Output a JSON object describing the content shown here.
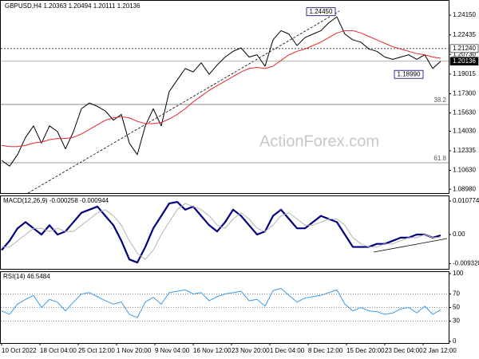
{
  "chart_data": [
    {
      "type": "line",
      "title": "GBPUSD,H4  1.20363 1.20494 1.20111 1.20136",
      "watermark": "ActionForex.com",
      "ylim": [
        1.08649,
        1.25123
      ],
      "yticks": [
        {
          "value": 1.2415,
          "label": "1.24150"
        },
        1.22435,
        {
          "value": 1.2073,
          "label": "1.20730"
        },
        1.19015,
        {
          "value": 1.173,
          "label": "1.17300"
        },
        {
          "value": 1.1563,
          "label": "1.15630"
        },
        {
          "value": 1.1403,
          "label": "1.14030"
        },
        1.12335,
        {
          "value": 1.1063,
          "label": "1.10630"
        },
        {
          "value": 1.0898,
          "label": "1.08980"
        }
      ],
      "series": [
        {
          "color": "#000000",
          "values": [
            1.115,
            1.11,
            1.12,
            1.135,
            1.145,
            1.13,
            1.145,
            1.14,
            1.125,
            1.14,
            1.16,
            1.165,
            1.162,
            1.158,
            1.15,
            1.155,
            1.13,
            1.12,
            1.145,
            1.16,
            1.145,
            1.175,
            1.185,
            1.195,
            1.192,
            1.2,
            1.19,
            1.198,
            1.205,
            1.21,
            1.213,
            1.205,
            1.207,
            1.197,
            1.22,
            1.228,
            1.225,
            1.215,
            1.222,
            1.225,
            1.228,
            1.235,
            1.24,
            1.225,
            1.22,
            1.218,
            1.212,
            1.21,
            1.205,
            1.203,
            1.205,
            1.207,
            1.203,
            1.207,
            1.195,
            1.20136
          ]
        },
        {
          "color": "#e8262a",
          "values": [
            1.128,
            1.127,
            1.127,
            1.128,
            1.13,
            1.131,
            1.133,
            1.134,
            1.134,
            1.135,
            1.138,
            1.142,
            1.146,
            1.15,
            1.152,
            1.153,
            1.152,
            1.149,
            1.147,
            1.147,
            1.148,
            1.151,
            1.155,
            1.16,
            1.166,
            1.171,
            1.176,
            1.18,
            1.184,
            1.188,
            1.192,
            1.195,
            1.196,
            1.195,
            1.197,
            1.202,
            1.207,
            1.21,
            1.212,
            1.215,
            1.218,
            1.222,
            1.226,
            1.228,
            1.228,
            1.226,
            1.223,
            1.22,
            1.217,
            1.214,
            1.212,
            1.21,
            1.208,
            1.207,
            1.205,
            1.204
          ]
        }
      ],
      "levels": [
        {
          "value": 1.2124,
          "label": "1.21240",
          "style": "dotted"
        },
        {
          "value": 1.20136,
          "label": "1.20136",
          "style": "current"
        }
      ],
      "fib": [
        {
          "value": 1.1637,
          "label": "38.2"
        },
        {
          "value": 1.1129,
          "label": "61.8"
        }
      ],
      "markers": [
        {
          "index": 42,
          "value": 1.2445,
          "label": "1.24450"
        },
        {
          "index": 53,
          "value": 1.1899,
          "label": "1.18990"
        }
      ]
    },
    {
      "type": "line",
      "title": "MACD(12,26,9) -0.000258 -0.000944",
      "ylim": [
        -0.01129,
        0.01257
      ],
      "yticks": [
        0.010774,
        {
          "value": 0,
          "label": "0.00"
        },
        -0.009328
      ],
      "series": [
        {
          "color": "#000080",
          "width": 2.2,
          "values": [
            -0.005,
            -0.002,
            0.002,
            0.004,
            0.002,
            0,
            0.003,
            0,
            0.001,
            0.004,
            0.007,
            0.008,
            0.009,
            0.006,
            0.003,
            -0.002,
            -0.008,
            -0.009,
            -0.004,
            0.002,
            0.006,
            0.01,
            0.0105,
            0.008,
            0.009,
            0.006,
            0.003,
            0.001,
            0.004,
            0.008,
            0.006,
            0.003,
            0,
            0.001,
            0.006,
            0.008,
            0.005,
            0.002,
            0.002,
            0.004,
            0.006,
            0.005,
            0.004,
            0,
            -0.004,
            -0.004,
            -0.004,
            -0.003,
            -0.003,
            -0.002,
            -0.001,
            -0.001,
            0,
            0,
            -0.001,
            -0.000258
          ]
        },
        {
          "color": "#b4b4b4",
          "width": 1,
          "values": [
            -0.004,
            -0.004,
            -0.002,
            0,
            0.002,
            0.002,
            0.001,
            0.002,
            0.001,
            0.001,
            0.003,
            0.005,
            0.007,
            0.008,
            0.006,
            0.003,
            -0.002,
            -0.006,
            -0.008,
            -0.005,
            0,
            0.004,
            0.008,
            0.01,
            0.009,
            0.008,
            0.006,
            0.003,
            0.002,
            0.005,
            0.007,
            0.005,
            0.002,
            0.001,
            0.003,
            0.006,
            0.007,
            0.005,
            0.003,
            0.003,
            0.004,
            0.005,
            0.005,
            0.003,
            -0.001,
            -0.003,
            -0.004,
            -0.004,
            -0.003,
            -0.003,
            -0.002,
            -0.001,
            -0.001,
            0,
            -0.001,
            -0.000944
          ]
        }
      ]
    },
    {
      "type": "line",
      "title": "RSI(14) 46.5484",
      "ylim": [
        -2.4,
        103.5
      ],
      "yticks": [
        100,
        70,
        50,
        30,
        0
      ],
      "series": [
        {
          "color": "#3c9be6",
          "width": 1,
          "values": [
            45,
            40,
            55,
            62,
            68,
            50,
            62,
            58,
            45,
            58,
            70,
            72,
            66,
            60,
            55,
            58,
            40,
            35,
            58,
            65,
            55,
            72,
            74,
            76,
            70,
            72,
            60,
            66,
            70,
            72,
            74,
            60,
            62,
            52,
            75,
            78,
            68,
            58,
            64,
            66,
            68,
            72,
            76,
            55,
            45,
            50,
            45,
            44,
            40,
            42,
            48,
            50,
            42,
            52,
            40,
            46.5484
          ]
        }
      ]
    }
  ],
  "x_labels": [
    "10 Oct 2022",
    "18 Oct 04:00",
    "25 Oct 12:00",
    "1 Nov 20:00",
    "9 Nov 04:00",
    "16 Nov 12:00",
    "23 Nov 20:00",
    "1 Dec 04:00",
    "8 Dec 12:00",
    "15 Dec 20:00",
    "23 Dec 04:00",
    "2 Jan 12:00"
  ]
}
